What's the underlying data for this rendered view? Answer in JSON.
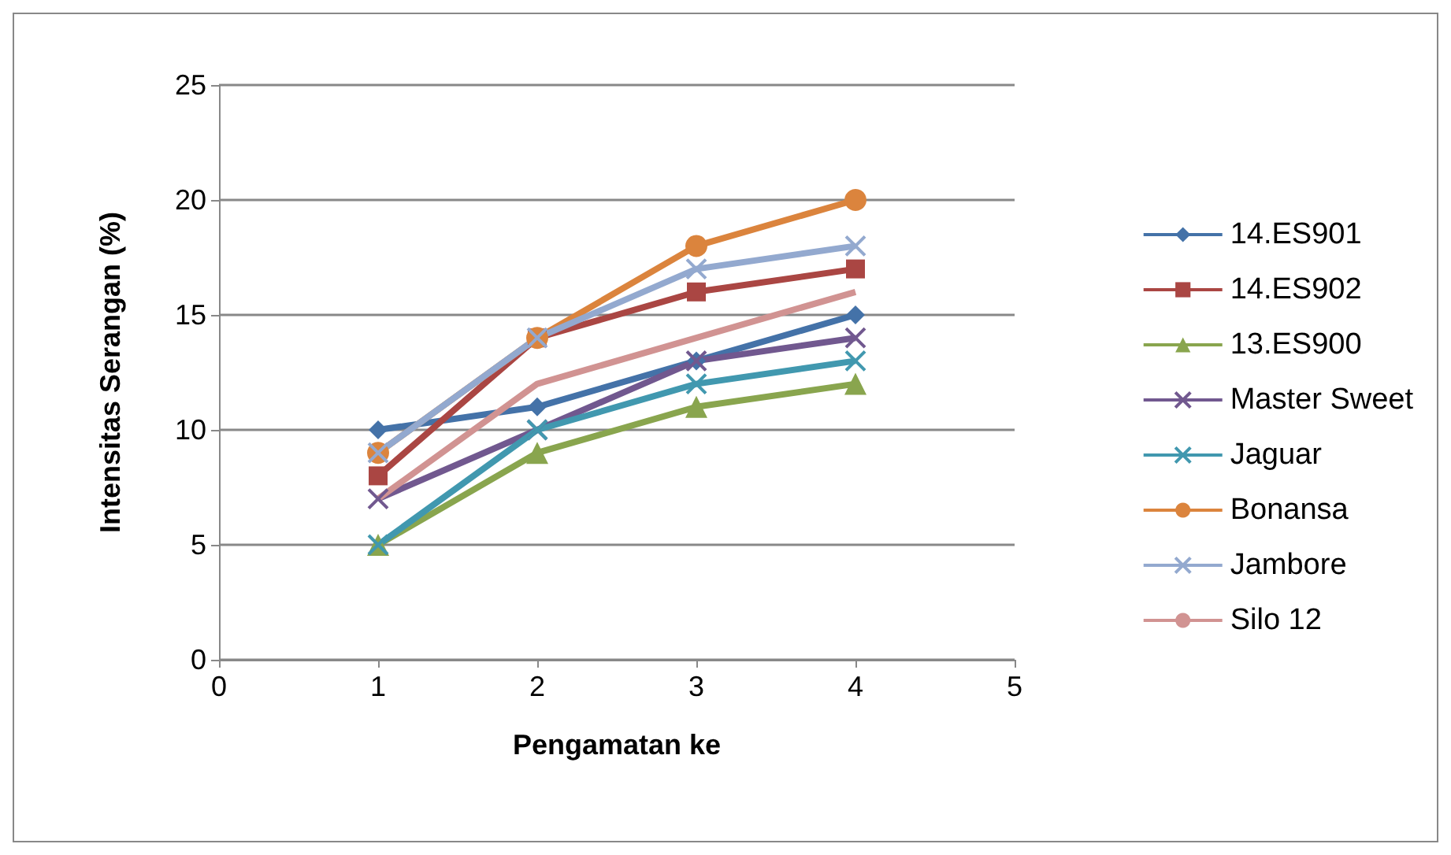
{
  "chart_data": {
    "type": "line",
    "xlabel": "Pengamatan ke",
    "ylabel": "Intensitas Serangan (%)",
    "x": [
      1,
      2,
      3,
      4
    ],
    "xlim": [
      0,
      5
    ],
    "xticks": [
      0,
      1,
      2,
      3,
      4,
      5
    ],
    "ylim": [
      0,
      25
    ],
    "yticks": [
      0,
      5,
      10,
      15,
      20,
      25
    ],
    "grid": "y",
    "legend": "right",
    "series": [
      {
        "name": "14.ES901",
        "color": "#4472a8",
        "marker": "diamond",
        "values": [
          10,
          11,
          13,
          15
        ]
      },
      {
        "name": "14.ES902",
        "color": "#aa4643",
        "marker": "square",
        "values": [
          8,
          14,
          16,
          17
        ]
      },
      {
        "name": "13.ES900",
        "color": "#89a54e",
        "marker": "triangle",
        "values": [
          5,
          9,
          11,
          12
        ]
      },
      {
        "name": "Master Sweet",
        "color": "#71588f",
        "marker": "cross",
        "values": [
          7,
          10,
          13,
          14
        ]
      },
      {
        "name": "Jaguar",
        "color": "#4198af",
        "marker": "cross",
        "values": [
          5,
          10,
          12,
          13
        ]
      },
      {
        "name": "Bonansa",
        "color": "#db843d",
        "marker": "circle",
        "values": [
          9,
          14,
          18,
          20
        ]
      },
      {
        "name": "Jambore",
        "color": "#93a9cf",
        "marker": "cross",
        "values": [
          9,
          14,
          17,
          18
        ]
      },
      {
        "name": "Silo 12",
        "color": "#d19392",
        "marker": "none",
        "values": [
          7,
          12,
          14,
          16
        ]
      }
    ]
  }
}
